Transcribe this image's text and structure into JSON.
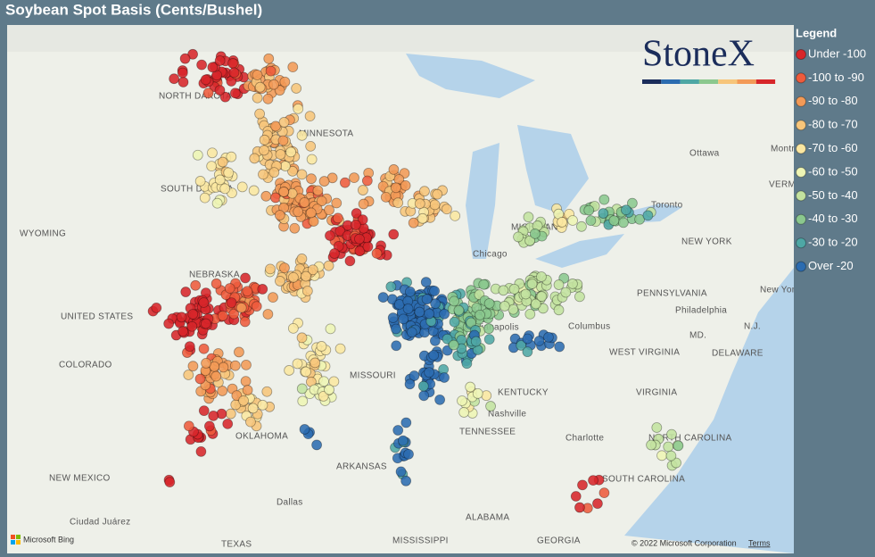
{
  "header": {
    "title": "Soybean Spot Basis (Cents/Bushel)"
  },
  "logo": "StoneX",
  "legend": {
    "title": "Legend",
    "items": [
      {
        "label": "Under -100",
        "color": "#d7262a"
      },
      {
        "label": "-100 to -90",
        "color": "#ee5b3c"
      },
      {
        "label": "-90 to -80",
        "color": "#f39a57"
      },
      {
        "label": "-80 to -70",
        "color": "#f7c57a"
      },
      {
        "label": "-70 to -60",
        "color": "#fbe7a1"
      },
      {
        "label": "-60 to -50",
        "color": "#eef5b4"
      },
      {
        "label": "-50 to -40",
        "color": "#c3e29f"
      },
      {
        "label": "-40 to -30",
        "color": "#8bc88e"
      },
      {
        "label": "-30 to -20",
        "color": "#4ea7a5"
      },
      {
        "label": "Over -20",
        "color": "#2c6cb0"
      }
    ]
  },
  "map": {
    "places": [
      "NORTH DAKOTA",
      "MINNESOTA",
      "SOUTH DAKOTA",
      "WYOMING",
      "NEBRASKA",
      "UNITED STATES",
      "COLORADO",
      "MISSOURI",
      "KENTUCKY",
      "Nashville",
      "TENNESSEE",
      "ARKANSAS",
      "NEW MEXICO",
      "Ciudad Juárez",
      "Dallas",
      "TEXAS",
      "MISSISSIPPI",
      "ALABAMA",
      "GEORGIA",
      "OKLAHOMA",
      "Chicago",
      "MICHIGAN",
      "Indianapolis",
      "Columbus",
      "WEST VIRGINIA",
      "VIRGINIA",
      "PENNSYLVANIA",
      "Philadelphia",
      "MD.",
      "DELAWARE",
      "N.J.",
      "New York",
      "NEW YORK",
      "Ottawa",
      "Montréal",
      "VERMONT",
      "Toronto",
      "NORTH CAROLINA",
      "Charlotte",
      "SOUTH CAROLINA"
    ]
  },
  "footer": {
    "bing": "Microsoft Bing",
    "copyright": "© 2022 Microsoft Corporation",
    "terms": "Terms"
  }
}
